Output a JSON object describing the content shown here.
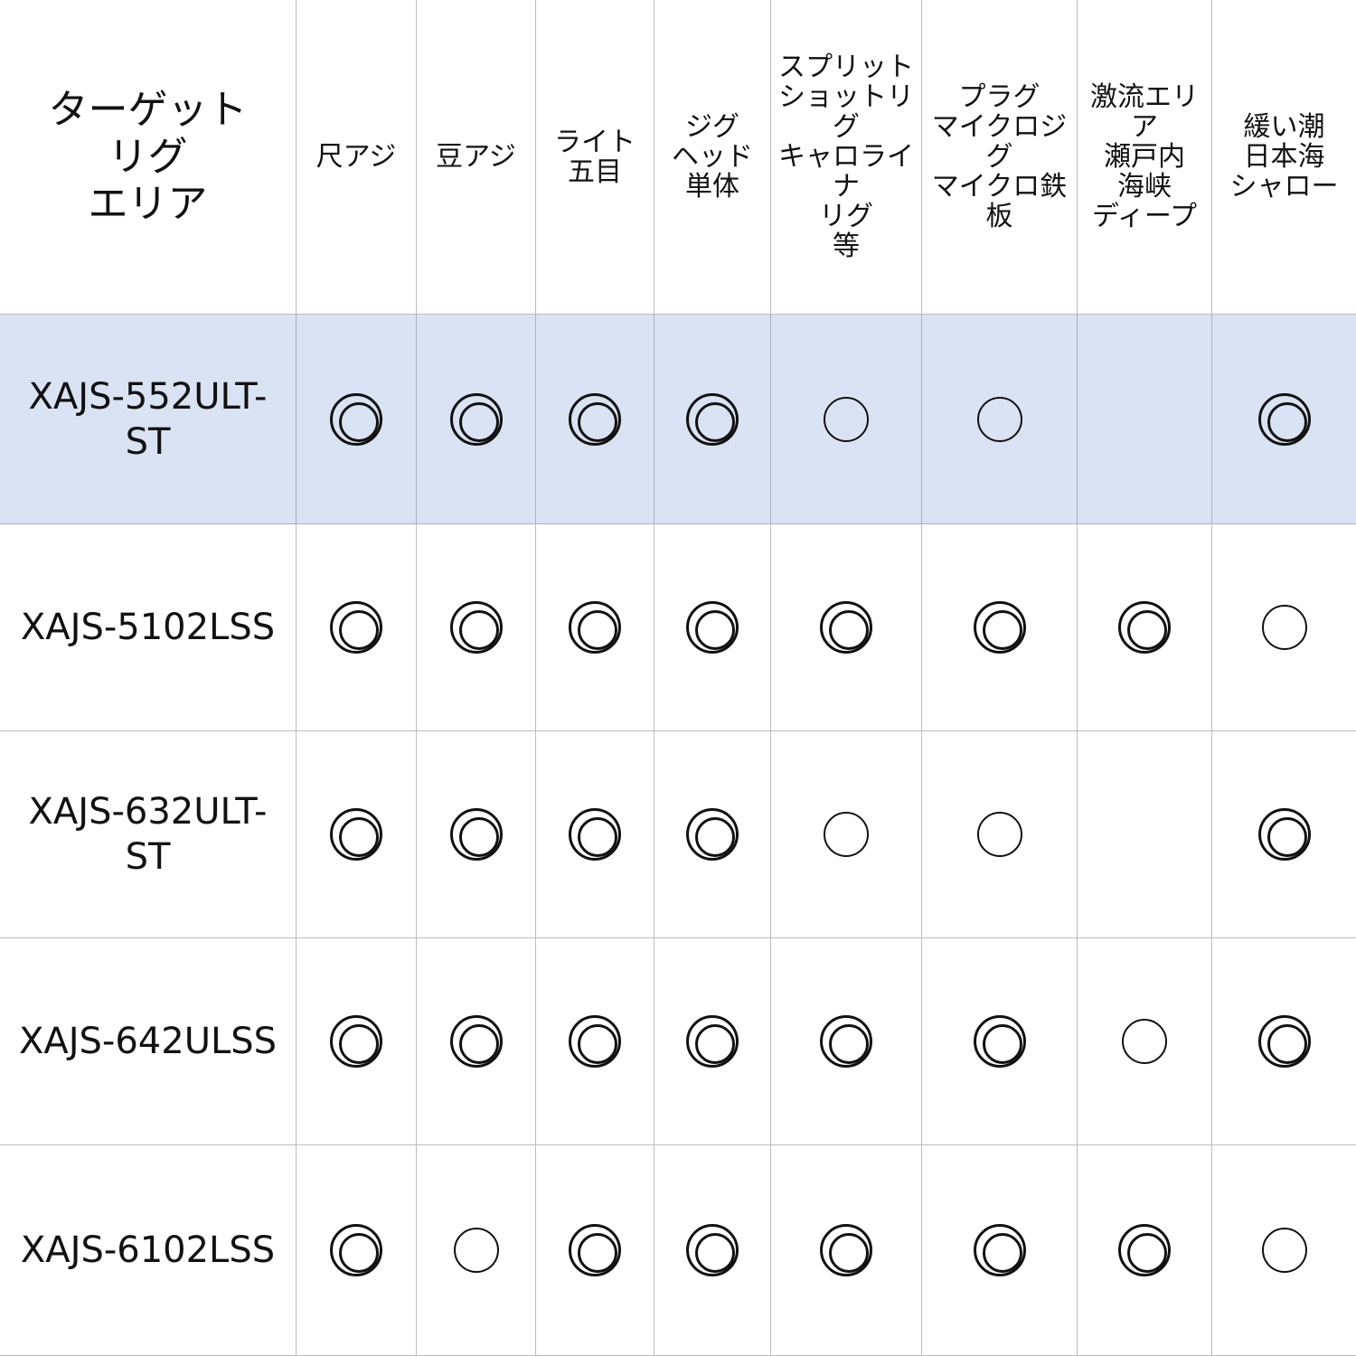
{
  "table": {
    "corner_header": "ターゲット\nリグ\nエリア",
    "columns": [
      "尺アジ",
      "豆アジ",
      "ライト\n五目",
      "ジグ\nヘッド\n単体",
      "スプリット\nショットリグ\nキャロライナ\nリグ\n等",
      "プラグ\nマイクロジグ\nマイクロ鉄板",
      "激流エリア\n瀬戸内\n海峡\nディープ",
      "緩い潮\n日本海\nシャロー"
    ],
    "legend_symbols": {
      "double": "◎",
      "single": "○"
    },
    "highlight_color": "#dae3f3",
    "rows": [
      {
        "model": "XAJS-552ULT-\nST",
        "highlighted": true,
        "marks": [
          "◎",
          "◎",
          "◎",
          "◎",
          "○",
          "○",
          "",
          "◎"
        ]
      },
      {
        "model": "XAJS-5102LSS",
        "highlighted": false,
        "marks": [
          "◎",
          "◎",
          "◎",
          "◎",
          "◎",
          "◎",
          "◎",
          "○"
        ]
      },
      {
        "model": "XAJS-632ULT-\nST",
        "highlighted": false,
        "marks": [
          "◎",
          "◎",
          "◎",
          "◎",
          "○",
          "○",
          "",
          "◎"
        ]
      },
      {
        "model": "XAJS-642ULSS",
        "highlighted": false,
        "marks": [
          "◎",
          "◎",
          "◎",
          "◎",
          "◎",
          "◎",
          "○",
          "◎"
        ]
      },
      {
        "model": "XAJS-6102LSS",
        "highlighted": false,
        "marks": [
          "◎",
          "○",
          "◎",
          "◎",
          "◎",
          "◎",
          "◎",
          "○"
        ]
      }
    ]
  }
}
